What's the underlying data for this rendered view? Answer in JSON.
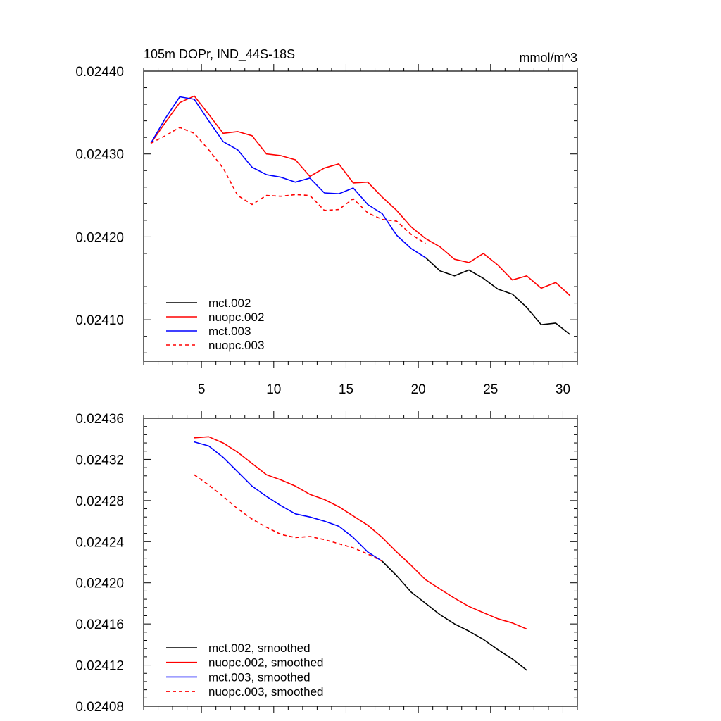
{
  "chart_data": [
    {
      "type": "line",
      "title": "105m DOPr, IND_44S-18S",
      "units_label": "mmol/m^3",
      "xlim": [
        1.0,
        31.0
      ],
      "ylim": [
        0.02405,
        0.0244
      ],
      "x_ticks": [
        5,
        10,
        15,
        20,
        25,
        30
      ],
      "x_tick_labels": [
        "5",
        "10",
        "15",
        "20",
        "25",
        "30"
      ],
      "y_ticks": [
        0.0241,
        0.0242,
        0.0243,
        0.0244
      ],
      "y_tick_labels": [
        "0.02410",
        "0.02420",
        "0.02430",
        "0.02440"
      ],
      "legend_position": "bottom-left",
      "series": [
        {
          "name": "mct.002",
          "color": "#000000",
          "dash": "solid",
          "x": [
            20.5,
            21.5,
            22.5,
            23.5,
            24.5,
            25.5,
            26.5,
            27.5,
            28.5,
            29.5,
            30.5
          ],
          "y": [
            0.024175,
            0.024159,
            0.024153,
            0.02416,
            0.02415,
            0.024137,
            0.024131,
            0.024115,
            0.024094,
            0.024096,
            0.024082
          ]
        },
        {
          "name": "nuopc.002",
          "color": "#ff0000",
          "dash": "solid",
          "x": [
            1.5,
            2.5,
            3.5,
            4.5,
            5.5,
            6.5,
            7.5,
            8.5,
            9.5,
            10.5,
            11.5,
            12.5,
            13.5,
            14.5,
            15.5,
            16.5,
            17.5,
            18.5,
            19.5,
            20.5,
            21.5,
            22.5,
            23.5,
            24.5,
            25.5,
            26.5,
            27.5,
            28.5,
            29.5,
            30.5
          ],
          "y": [
            0.024313,
            0.024338,
            0.024362,
            0.02437,
            0.024348,
            0.024325,
            0.024327,
            0.024322,
            0.0243,
            0.024298,
            0.024293,
            0.024273,
            0.024283,
            0.024288,
            0.024265,
            0.024266,
            0.024248,
            0.024232,
            0.024212,
            0.024198,
            0.024188,
            0.024173,
            0.024169,
            0.02418,
            0.024166,
            0.024148,
            0.024153,
            0.024138,
            0.024145,
            0.024129
          ]
        },
        {
          "name": "mct.003",
          "color": "#0000ff",
          "dash": "solid",
          "x": [
            1.5,
            2.5,
            3.5,
            4.5,
            5.5,
            6.5,
            7.5,
            8.5,
            9.5,
            10.5,
            11.5,
            12.5,
            13.5,
            14.5,
            15.5,
            16.5,
            17.5,
            18.5,
            19.5,
            20.5
          ],
          "y": [
            0.024313,
            0.024343,
            0.024369,
            0.024366,
            0.02434,
            0.024315,
            0.024305,
            0.024284,
            0.024275,
            0.024272,
            0.024266,
            0.024271,
            0.024253,
            0.024252,
            0.024259,
            0.024239,
            0.024228,
            0.024202,
            0.024186,
            0.024175
          ]
        },
        {
          "name": "nuopc.003",
          "color": "#ff0000",
          "dash": "dashed",
          "x": [
            1.5,
            2.5,
            3.5,
            4.5,
            5.5,
            6.5,
            7.5,
            8.5,
            9.5,
            10.5,
            11.5,
            12.5,
            13.5,
            14.5,
            15.5,
            16.5,
            17.5,
            18.5,
            19.5,
            20.5
          ],
          "y": [
            0.024313,
            0.024322,
            0.024332,
            0.024325,
            0.024305,
            0.024283,
            0.02425,
            0.024239,
            0.02425,
            0.024249,
            0.024251,
            0.02425,
            0.024232,
            0.024233,
            0.024246,
            0.024229,
            0.024221,
            0.024219,
            0.024203,
            0.024192
          ]
        }
      ]
    },
    {
      "type": "line",
      "title": "",
      "xlim": [
        1.0,
        31.0
      ],
      "ylim": [
        0.02408,
        0.02436
      ],
      "x_ticks": [
        5,
        10,
        15,
        20,
        25,
        30
      ],
      "y_ticks": [
        0.02408,
        0.02412,
        0.02416,
        0.0242,
        0.02424,
        0.02428,
        0.02432,
        0.02436
      ],
      "y_tick_labels": [
        "0.02408",
        "0.02412",
        "0.02416",
        "0.02420",
        "0.02424",
        "0.02428",
        "0.02432",
        "0.02436"
      ],
      "legend_position": "bottom-left",
      "series": [
        {
          "name": "mct.002, smoothed",
          "color": "#000000",
          "dash": "solid",
          "x": [
            17.5,
            18.5,
            19.5,
            20.5,
            21.5,
            22.5,
            23.5,
            24.5,
            25.5,
            26.5,
            27.5
          ],
          "y": [
            0.024221,
            0.024207,
            0.024191,
            0.02418,
            0.024169,
            0.02416,
            0.024153,
            0.024145,
            0.024135,
            0.024126,
            0.024115
          ]
        },
        {
          "name": "nuopc.002, smoothed",
          "color": "#ff0000",
          "dash": "solid",
          "x": [
            4.5,
            5.5,
            6.5,
            7.5,
            8.5,
            9.5,
            10.5,
            11.5,
            12.5,
            13.5,
            14.5,
            15.5,
            16.5,
            17.5,
            18.5,
            19.5,
            20.5,
            21.5,
            22.5,
            23.5,
            24.5,
            25.5,
            26.5,
            27.5
          ],
          "y": [
            0.024341,
            0.024342,
            0.024336,
            0.024327,
            0.024316,
            0.024305,
            0.0243,
            0.024294,
            0.024286,
            0.024281,
            0.024274,
            0.024265,
            0.024256,
            0.024244,
            0.02423,
            0.024217,
            0.024203,
            0.024194,
            0.024185,
            0.024177,
            0.024171,
            0.024165,
            0.024161,
            0.024155
          ]
        },
        {
          "name": "mct.003, smoothed",
          "color": "#0000ff",
          "dash": "solid",
          "x": [
            4.5,
            5.5,
            6.5,
            7.5,
            8.5,
            9.5,
            10.5,
            11.5,
            12.5,
            13.5,
            14.5,
            15.5,
            16.5,
            17.5
          ],
          "y": [
            0.024337,
            0.024333,
            0.024322,
            0.024308,
            0.024294,
            0.024284,
            0.024275,
            0.024267,
            0.024264,
            0.02426,
            0.024255,
            0.024244,
            0.02423,
            0.024221
          ]
        },
        {
          "name": "nuopc.003, smoothed",
          "color": "#ff0000",
          "dash": "dashed",
          "x": [
            4.5,
            5.5,
            6.5,
            7.5,
            8.5,
            9.5,
            10.5,
            11.5,
            12.5,
            13.5,
            14.5,
            15.5,
            16.5,
            17.5
          ],
          "y": [
            0.024305,
            0.024295,
            0.024284,
            0.024272,
            0.024262,
            0.024254,
            0.024247,
            0.024244,
            0.024245,
            0.024242,
            0.024238,
            0.024234,
            0.024228,
            0.024221
          ]
        }
      ]
    }
  ]
}
